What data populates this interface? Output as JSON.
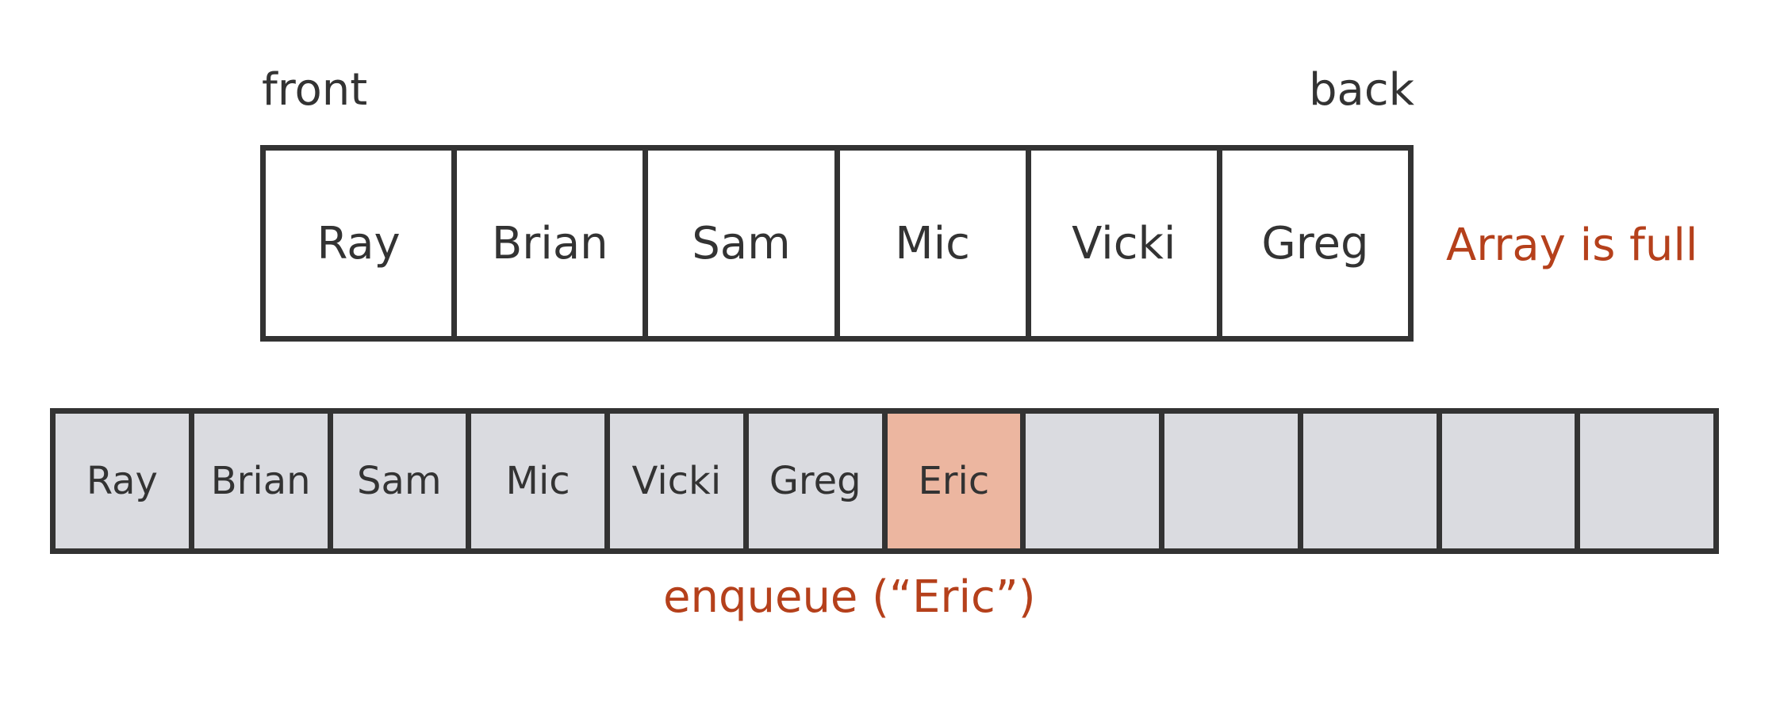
{
  "labels": {
    "front": "front",
    "back": "back",
    "full": "Array is full",
    "operation": "enqueue (“Eric”)"
  },
  "original_array": {
    "cells": [
      "Ray",
      "Brian",
      "Sam",
      "Mic",
      "Vicki",
      "Greg"
    ]
  },
  "resized_array": {
    "cells": [
      "Ray",
      "Brian",
      "Sam",
      "Mic",
      "Vicki",
      "Greg",
      "Eric",
      "",
      "",
      "",
      "",
      ""
    ],
    "highlight_index": 6
  },
  "colors": {
    "text": "#333333",
    "accent": "#b5401b",
    "highlight_fill": "#ecb6a0",
    "cell_fill": "#dadbe0",
    "border": "#333333"
  }
}
